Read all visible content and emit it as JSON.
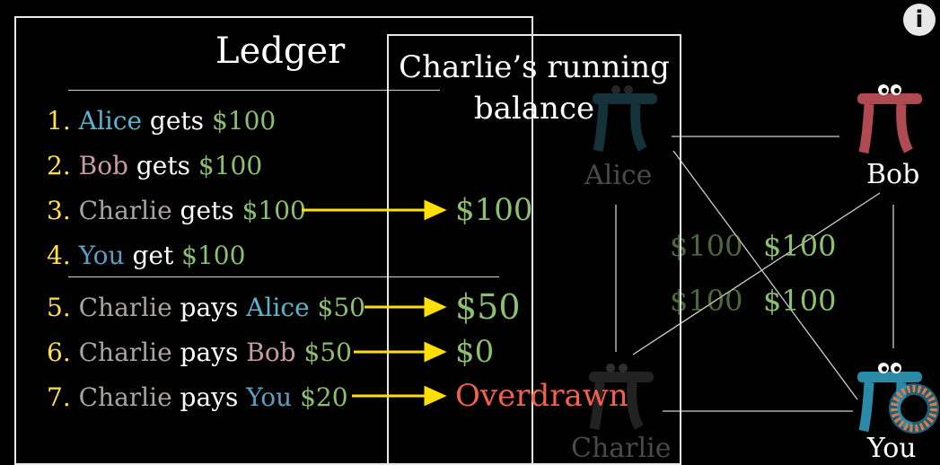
{
  "ledger": {
    "title": "Ledger",
    "entries": [
      {
        "num": "1.",
        "a": "Alice",
        "b": " gets ",
        "c": "$100"
      },
      {
        "num": "2.",
        "a": "Bob",
        "b": " gets ",
        "c": "$100"
      },
      {
        "num": "3.",
        "a": "Charlie",
        "b": " gets ",
        "c": "$100"
      },
      {
        "num": "4.",
        "a": "You",
        "b": " get ",
        "c": "$100"
      },
      {
        "num": "5.",
        "a": "Charlie",
        "b": " pays ",
        "d": "Alice",
        "c": "$50"
      },
      {
        "num": "6.",
        "a": "Charlie",
        "b": " pays ",
        "d": "Bob",
        "c": "$50"
      },
      {
        "num": "7.",
        "a": "Charlie",
        "b": " pays ",
        "d": "You",
        "c": "$20"
      }
    ]
  },
  "running": {
    "title_line1": "Charlie’s running",
    "title_line2": "balance",
    "values": [
      "$100",
      "$50",
      "$0",
      "Overdrawn"
    ]
  },
  "graph": {
    "nodes": {
      "alice": "Alice",
      "bob": "Bob",
      "charlie": "Charlie",
      "you": "You"
    },
    "edge_labels": [
      "$100",
      "$100",
      "$100",
      "$100"
    ]
  },
  "info_button": "i",
  "colors": {
    "alice": "#5ab4d0",
    "bob": "#c79ba4",
    "charlie": "#aaa59f",
    "you": "#5c9dc0",
    "money": "#8cbf6e",
    "number": "#ffe04a",
    "overdrawn": "#f4604e",
    "arrow": "#ffe000"
  }
}
